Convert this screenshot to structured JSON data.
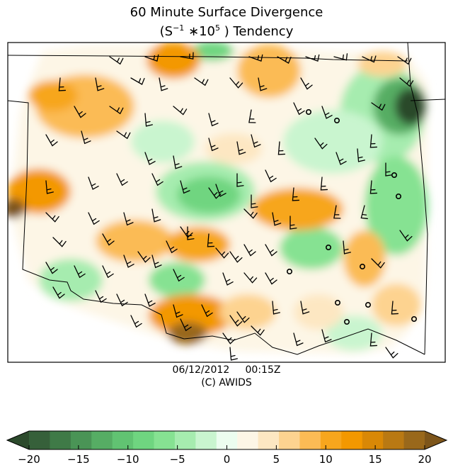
{
  "title": {
    "line1": "60 Minute Surface Divergence",
    "line2_pre": "(S",
    "line2_sup1": "−1",
    "line2_mid": " ∗10",
    "line2_sup2": "5",
    "line2_post": " ) Tendency"
  },
  "footer": {
    "date": "06/12/2012",
    "time": "00:15Z",
    "credit": "(C) AWIDS"
  },
  "colorbar": {
    "ticks": [
      -20,
      -15,
      -10,
      -5,
      0,
      5,
      10,
      15,
      20
    ],
    "tick_labels": [
      "−20",
      "−15",
      "−10",
      "−5",
      "0",
      "5",
      "10",
      "15",
      "20"
    ],
    "range": [
      -20,
      20
    ],
    "colors": [
      "#2c4a2c",
      "#36603a",
      "#3f7a47",
      "#4a9456",
      "#56ad64",
      "#61c372",
      "#6fd580",
      "#86e292",
      "#a6ecaf",
      "#c9f5cf",
      "#ecfdef",
      "#fdf6e6",
      "#fde7c2",
      "#fdd390",
      "#fbbb55",
      "#f7a61d",
      "#f39800",
      "#d98806",
      "#b97913",
      "#99681b",
      "#7d551a"
    ]
  },
  "chart_data": {
    "type": "heatmap",
    "title": "60 Minute Surface Divergence (S^-1 *10^5) Tendency",
    "valid_time": "06/12/2012 00:15Z",
    "value_range": [
      -20,
      20
    ],
    "extend": "both",
    "features": [
      {
        "region": "north-central",
        "sign": "convergence",
        "peak": 12
      },
      {
        "region": "north-west",
        "sign": "convergence",
        "peak": 9
      },
      {
        "region": "north-east",
        "sign": "divergence",
        "peak": -17
      },
      {
        "region": "far west",
        "sign": "convergence",
        "peak": 15
      },
      {
        "region": "central",
        "sign": "divergence",
        "peak": -8
      },
      {
        "region": "south-central",
        "sign": "convergence",
        "peak": 14
      },
      {
        "region": "east-central",
        "sign": "convergence",
        "peak": 10
      },
      {
        "region": "south",
        "sign": "convergence",
        "peak": 9
      },
      {
        "region": "east",
        "sign": "divergence",
        "peak": -7
      }
    ]
  }
}
